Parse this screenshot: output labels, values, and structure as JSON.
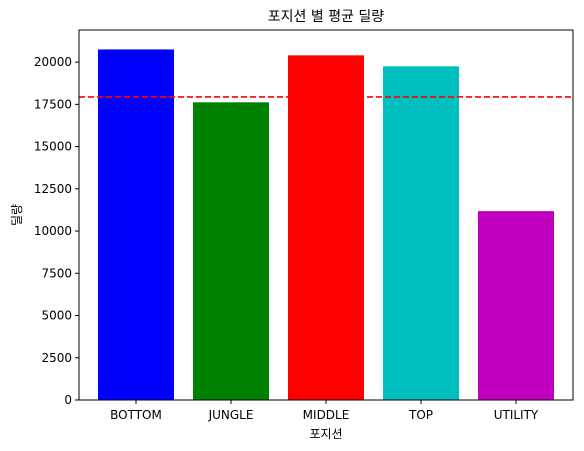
{
  "chart_data": {
    "type": "bar",
    "title": "포지션 별 평균 딜량",
    "xlabel": "포지션",
    "ylabel": "딜량",
    "categories": [
      "BOTTOM",
      "JUNGLE",
      "MIDDLE",
      "TOP",
      "UTILITY"
    ],
    "values": [
      20750,
      17620,
      20400,
      19750,
      11180
    ],
    "colors": [
      "#0000ff",
      "#008000",
      "#ff0000",
      "#00bfbf",
      "#bf00bf"
    ],
    "ylim": [
      0,
      21900
    ],
    "yticks": [
      0,
      2500,
      5000,
      7500,
      10000,
      12500,
      15000,
      17500,
      20000
    ],
    "reference_line": {
      "value": 17940,
      "color": "#ff0000",
      "style": "dashed"
    },
    "grid": false
  }
}
